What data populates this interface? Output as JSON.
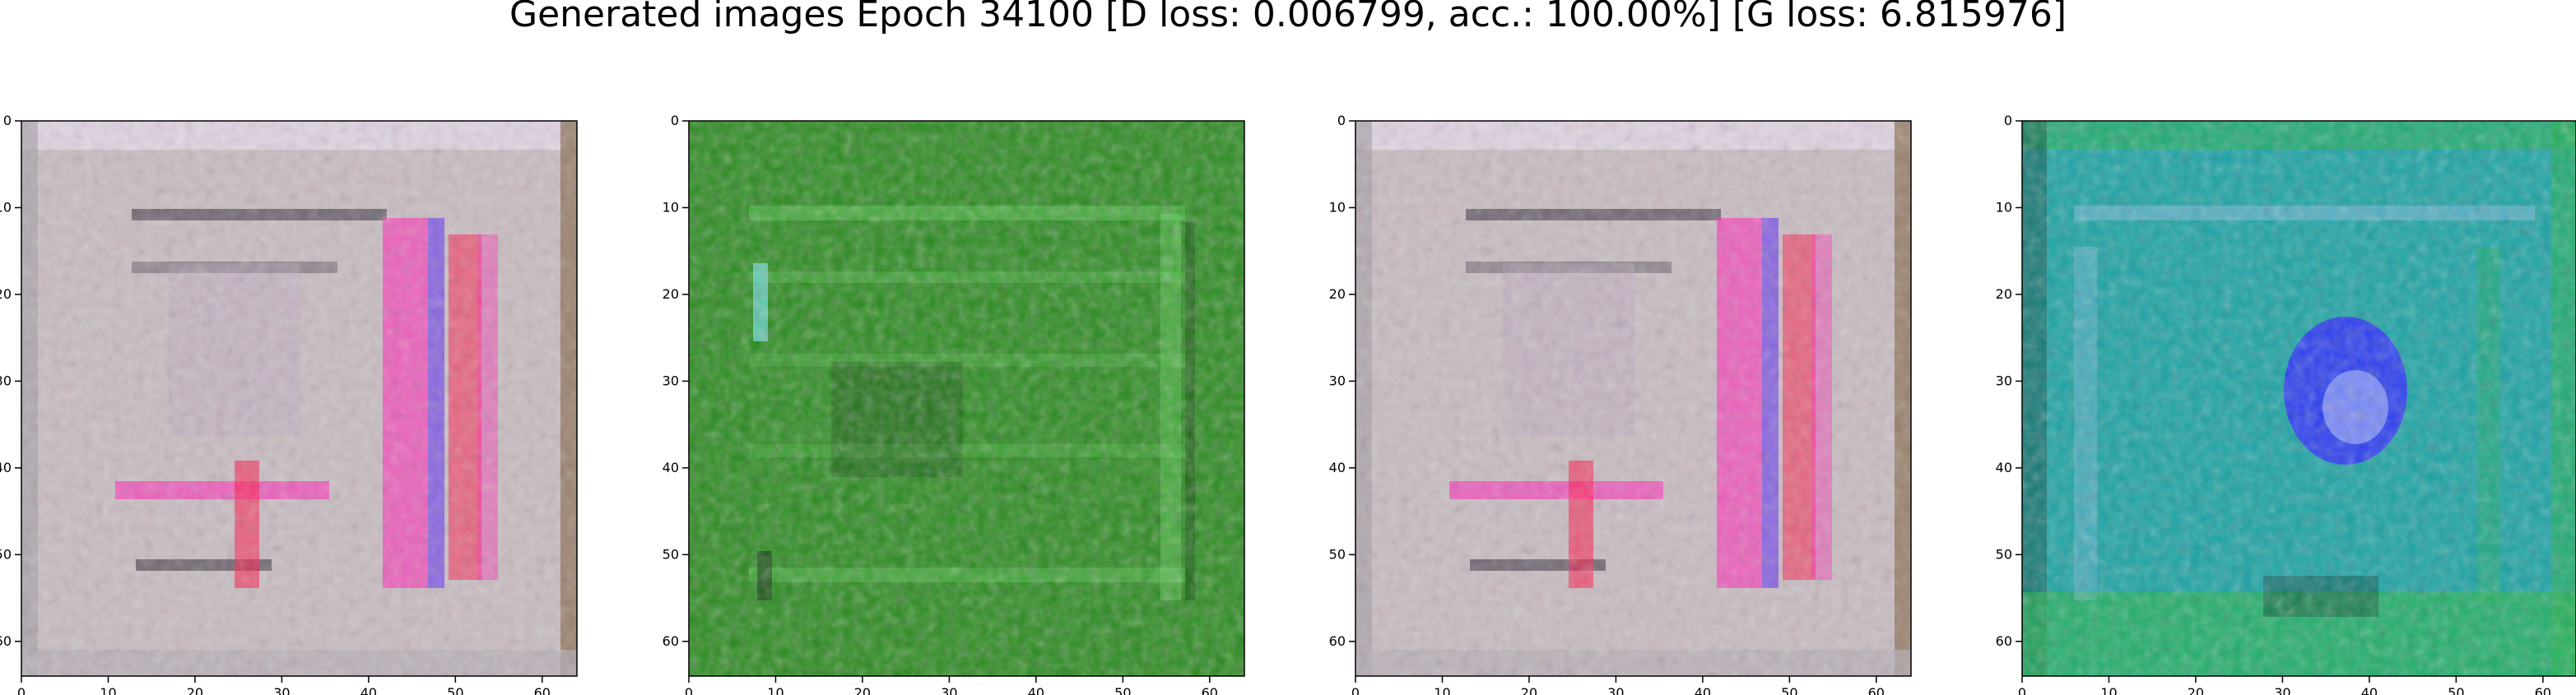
{
  "figure": {
    "title": "Generated images Epoch 34100 [D loss: 0.006799, acc.: 100.00%] [G loss: 6.815976]"
  },
  "axes_ticks": {
    "x": [
      "0",
      "10",
      "20",
      "30",
      "40",
      "50",
      "60"
    ],
    "y": [
      "0",
      "10",
      "20",
      "30",
      "40",
      "50",
      "60"
    ]
  },
  "panels": [
    {
      "id": "p1",
      "description": "",
      "palette": {
        "base": "#c9bdc2",
        "border_top": "#e2d6e6",
        "accent_magenta": "#ff2fb8",
        "accent_red": "#ff1d4c",
        "accent_blue": "#3a6bff",
        "dark": "#2a2233"
      }
    },
    {
      "id": "p2",
      "description": "",
      "palette": {
        "base": "#1f7f12",
        "bright": "#6fe06a",
        "dark": "#0b2a0b",
        "cyan": "#73e2e8"
      }
    },
    {
      "id": "p3",
      "description": "",
      "palette": {
        "base": "#c9bdc2",
        "border_top": "#e2d6e6",
        "accent_magenta": "#ff2fb8",
        "accent_red": "#ff1d4c",
        "accent_blue": "#3a6bff",
        "dark": "#2a2233"
      }
    },
    {
      "id": "p4",
      "description": "",
      "palette": {
        "base": "#1aa3a4",
        "edge_green": "#23b34a",
        "blob_blue": "#2d2bff",
        "blob_light": "#b8c7ff",
        "dark": "#0b2a22"
      }
    }
  ]
}
